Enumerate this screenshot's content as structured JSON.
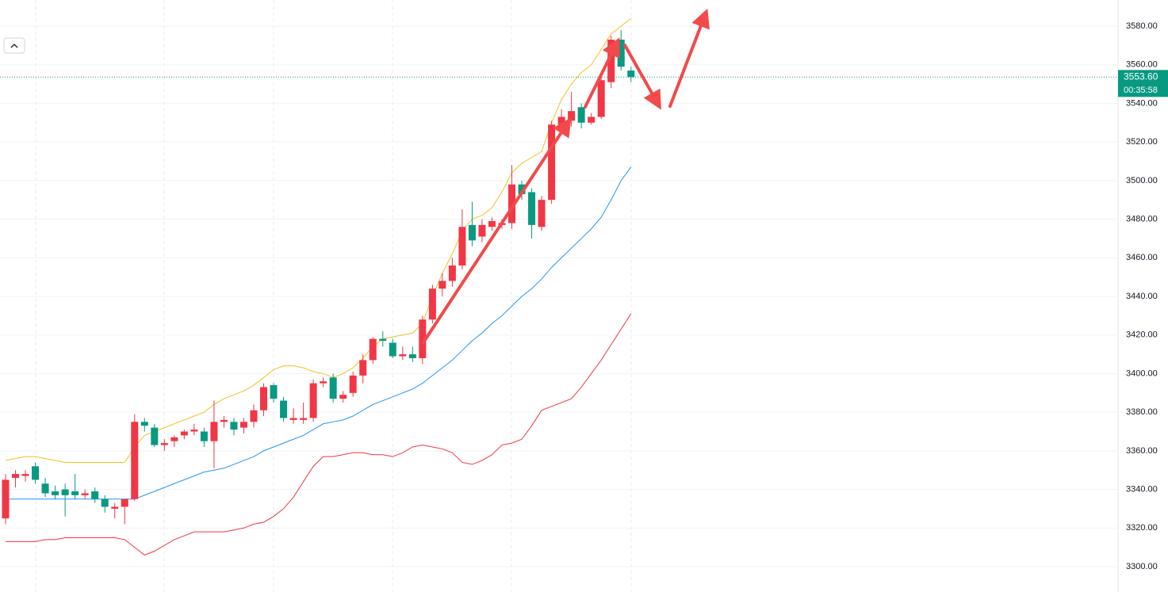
{
  "chart_data": {
    "type": "candlestick",
    "up_color": "#f23645",
    "down_color": "#089981",
    "open": [
      3325,
      3346,
      3347,
      3352,
      3343,
      3339,
      3340,
      3339,
      3337,
      3339,
      3335,
      3330,
      3331,
      3335,
      3375,
      3372,
      3363,
      3365,
      3368,
      3370,
      3370,
      3365,
      3375,
      3375,
      3372,
      3375,
      3381,
      3394,
      3386,
      3376,
      3376,
      3377,
      3395,
      3398,
      3387,
      3390,
      3399,
      3407,
      3418,
      3416,
      3409,
      3410,
      3408,
      3428,
      3444,
      3448,
      3456,
      3477,
      3471,
      3476,
      3477,
      3478,
      3498,
      3494,
      3476,
      3490,
      3529,
      3531,
      3538,
      3530,
      3533,
      3551,
      3573,
      3557
    ],
    "high": [
      3348,
      3350,
      3350,
      3354,
      3346,
      3342,
      3343,
      3348,
      3340,
      3341,
      3337,
      3333,
      3335,
      3379,
      3377,
      3374,
      3366,
      3368,
      3371,
      3374,
      3372,
      3386,
      3378,
      3377,
      3377,
      3384,
      3395,
      3395,
      3388,
      3382,
      3385,
      3397,
      3398,
      3400,
      3391,
      3401,
      3410,
      3419,
      3422,
      3418,
      3414,
      3414,
      3430,
      3446,
      3452,
      3460,
      3485,
      3489,
      3480,
      3481,
      3480,
      3508,
      3500,
      3496,
      3492,
      3531,
      3537,
      3546,
      3540,
      3535,
      3556,
      3575,
      3578,
      3559
    ],
    "low": [
      3322,
      3341,
      3344,
      3343,
      3336,
      3335,
      3326,
      3335,
      3335,
      3333,
      3328,
      3325,
      3322,
      3334,
      3370,
      3362,
      3360,
      3362,
      3366,
      3368,
      3362,
      3351,
      3372,
      3368,
      3369,
      3372,
      3378,
      3385,
      3375,
      3374,
      3374,
      3375,
      3393,
      3385,
      3385,
      3388,
      3395,
      3405,
      3414,
      3408,
      3407,
      3406,
      3405,
      3426,
      3440,
      3445,
      3454,
      3466,
      3468,
      3474,
      3475,
      3475,
      3490,
      3470,
      3474,
      3488,
      3525,
      3528,
      3527,
      3529,
      3532,
      3548,
      3557,
      3551
    ],
    "close": [
      3345,
      3348,
      3348,
      3345,
      3338,
      3337,
      3337,
      3337,
      3338,
      3335,
      3331,
      3331,
      3335,
      3375,
      3373,
      3363,
      3364,
      3367,
      3370,
      3371,
      3365,
      3375,
      3376,
      3371,
      3375,
      3381,
      3393,
      3387,
      3377,
      3377,
      3377,
      3395,
      3396,
      3387,
      3389,
      3399,
      3407,
      3418,
      3417,
      3409,
      3410,
      3408,
      3428,
      3444,
      3448,
      3456,
      3476,
      3469,
      3477,
      3479,
      3478,
      3498,
      3493,
      3477,
      3490,
      3529,
      3533,
      3536,
      3530,
      3533,
      3552,
      3573,
      3559,
      3553.6
    ],
    "bands": [
      {
        "color": "#f5c024",
        "values": [
          3355,
          3356,
          3357,
          3357,
          3356,
          3355,
          3354,
          3354,
          3354,
          3354,
          3354,
          3354,
          3354,
          3362,
          3368,
          3370,
          3372,
          3374,
          3376,
          3378,
          3380,
          3384,
          3387,
          3389,
          3391,
          3394,
          3398,
          3402,
          3404,
          3404,
          3403,
          3401,
          3400,
          3398,
          3400,
          3403,
          3408,
          3414,
          3418,
          3419,
          3420,
          3421,
          3426,
          3440,
          3452,
          3462,
          3474,
          3480,
          3482,
          3486,
          3494,
          3504,
          3509,
          3512,
          3515,
          3530,
          3542,
          3550,
          3556,
          3560,
          3568,
          3576,
          3580,
          3584
        ]
      },
      {
        "color": "#2196f3",
        "values": [
          3335,
          3335,
          3335,
          3335,
          3335,
          3335,
          3335,
          3335,
          3335,
          3335,
          3335,
          3335,
          3335,
          3335,
          3337,
          3339,
          3341,
          3343,
          3345,
          3347,
          3349,
          3350,
          3351,
          3353,
          3355,
          3357,
          3360,
          3362,
          3364,
          3366,
          3368,
          3371,
          3374,
          3375,
          3376,
          3378,
          3381,
          3384,
          3386,
          3388,
          3390,
          3392,
          3395,
          3399,
          3403,
          3407,
          3412,
          3417,
          3421,
          3426,
          3430,
          3435,
          3440,
          3444,
          3449,
          3455,
          3460,
          3465,
          3470,
          3475,
          3481,
          3490,
          3500,
          3507
        ]
      },
      {
        "color": "#f23645",
        "values": [
          3313,
          3313,
          3313,
          3313,
          3314,
          3314,
          3315,
          3315,
          3315,
          3315,
          3315,
          3315,
          3314,
          3310,
          3306,
          3308,
          3311,
          3314,
          3316,
          3318,
          3318,
          3318,
          3318,
          3319,
          3320,
          3322,
          3323,
          3326,
          3330,
          3336,
          3344,
          3352,
          3357,
          3357,
          3358,
          3359,
          3359,
          3358,
          3358,
          3357,
          3359,
          3362,
          3363,
          3362,
          3361,
          3359,
          3354,
          3353,
          3355,
          3358,
          3363,
          3364,
          3366,
          3373,
          3381,
          3383,
          3385,
          3387,
          3393,
          3400,
          3407,
          3415,
          3423,
          3431
        ]
      }
    ],
    "last_price": {
      "value": 3553.6,
      "label": "3553.60"
    },
    "countdown": "00:35:58",
    "ylim": [
      3300,
      3580
    ],
    "yticks": [
      {
        "value": 3300,
        "label": "3300.00"
      },
      {
        "value": 3320,
        "label": "3320.00"
      },
      {
        "value": 3340,
        "label": "3340.00"
      },
      {
        "value": 3360,
        "label": "3360.00"
      },
      {
        "value": 3380,
        "label": "3380.00"
      },
      {
        "value": 3400,
        "label": "3400.00"
      },
      {
        "value": 3420,
        "label": "3420.00"
      },
      {
        "value": 3440,
        "label": "3440.00"
      },
      {
        "value": 3460,
        "label": "3460.00"
      },
      {
        "value": 3480,
        "label": "3480.00"
      },
      {
        "value": 3500,
        "label": "3500.00"
      },
      {
        "value": 3520,
        "label": "3520.00"
      },
      {
        "value": 3540,
        "label": "3540.00"
      },
      {
        "value": 3560,
        "label": "3560.00"
      },
      {
        "value": 3580,
        "label": "3580.00"
      }
    ],
    "grid": true
  }
}
